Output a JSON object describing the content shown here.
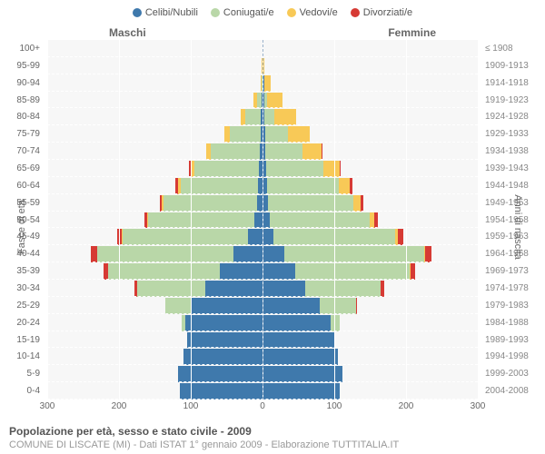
{
  "legend": [
    {
      "label": "Celibi/Nubili",
      "color": "#3f79ac"
    },
    {
      "label": "Coniugati/e",
      "color": "#b9d7a8"
    },
    {
      "label": "Vedovi/e",
      "color": "#f8c957"
    },
    {
      "label": "Divorziati/e",
      "color": "#d63a34"
    }
  ],
  "side_labels": {
    "male": "Maschi",
    "female": "Femmine"
  },
  "axis_titles": {
    "left": "Fasce di età",
    "right": "Anni di nascita"
  },
  "footer": {
    "title": "Popolazione per età, sesso e stato civile - 2009",
    "sub": "COMUNE DI LISCATE (MI) - Dati ISTAT 1° gennaio 2009 - Elaborazione TUTTITALIA.IT"
  },
  "x_max": 300,
  "x_ticks": [
    300,
    200,
    100,
    0,
    100,
    200,
    300
  ],
  "colors": {
    "single": "#3f79ac",
    "married": "#b9d7a8",
    "widowed": "#f8c957",
    "divorced": "#d63a34",
    "plot_bg": "#f7f7f7",
    "grid": "#ffffff"
  },
  "rows": [
    {
      "age": "100+",
      "birth": "≤ 1908",
      "m": {
        "s": 0,
        "c": 0,
        "w": 0,
        "d": 0
      },
      "f": {
        "s": 0,
        "c": 0,
        "w": 0,
        "d": 0
      }
    },
    {
      "age": "95-99",
      "birth": "1909-1913",
      "m": {
        "s": 0,
        "c": 0,
        "w": 1,
        "d": 0
      },
      "f": {
        "s": 0,
        "c": 0,
        "w": 3,
        "d": 0
      }
    },
    {
      "age": "90-94",
      "birth": "1914-1918",
      "m": {
        "s": 0,
        "c": 1,
        "w": 2,
        "d": 0
      },
      "f": {
        "s": 2,
        "c": 1,
        "w": 8,
        "d": 0
      }
    },
    {
      "age": "85-89",
      "birth": "1919-1923",
      "m": {
        "s": 1,
        "c": 7,
        "w": 5,
        "d": 0
      },
      "f": {
        "s": 2,
        "c": 4,
        "w": 22,
        "d": 0
      }
    },
    {
      "age": "80-84",
      "birth": "1924-1928",
      "m": {
        "s": 2,
        "c": 22,
        "w": 7,
        "d": 0
      },
      "f": {
        "s": 3,
        "c": 14,
        "w": 30,
        "d": 0
      }
    },
    {
      "age": "75-79",
      "birth": "1929-1933",
      "m": {
        "s": 3,
        "c": 42,
        "w": 8,
        "d": 0
      },
      "f": {
        "s": 4,
        "c": 32,
        "w": 30,
        "d": 0
      }
    },
    {
      "age": "70-74",
      "birth": "1934-1938",
      "m": {
        "s": 4,
        "c": 68,
        "w": 6,
        "d": 1
      },
      "f": {
        "s": 4,
        "c": 52,
        "w": 26,
        "d": 1
      }
    },
    {
      "age": "65-69",
      "birth": "1939-1943",
      "m": {
        "s": 5,
        "c": 90,
        "w": 5,
        "d": 2
      },
      "f": {
        "s": 5,
        "c": 80,
        "w": 22,
        "d": 2
      }
    },
    {
      "age": "60-64",
      "birth": "1944-1948",
      "m": {
        "s": 6,
        "c": 108,
        "w": 4,
        "d": 3
      },
      "f": {
        "s": 6,
        "c": 100,
        "w": 15,
        "d": 4
      }
    },
    {
      "age": "55-59",
      "birth": "1949-1953",
      "m": {
        "s": 8,
        "c": 130,
        "w": 2,
        "d": 3
      },
      "f": {
        "s": 7,
        "c": 120,
        "w": 10,
        "d": 4
      }
    },
    {
      "age": "50-54",
      "birth": "1954-1958",
      "m": {
        "s": 12,
        "c": 148,
        "w": 1,
        "d": 4
      },
      "f": {
        "s": 10,
        "c": 140,
        "w": 6,
        "d": 5
      }
    },
    {
      "age": "45-49",
      "birth": "1959-1963",
      "m": {
        "s": 20,
        "c": 175,
        "w": 1,
        "d": 6
      },
      "f": {
        "s": 15,
        "c": 170,
        "w": 4,
        "d": 7
      }
    },
    {
      "age": "40-44",
      "birth": "1964-1968",
      "m": {
        "s": 40,
        "c": 190,
        "w": 1,
        "d": 8
      },
      "f": {
        "s": 30,
        "c": 195,
        "w": 2,
        "d": 9
      }
    },
    {
      "age": "35-39",
      "birth": "1969-1973",
      "m": {
        "s": 60,
        "c": 155,
        "w": 0,
        "d": 6
      },
      "f": {
        "s": 45,
        "c": 160,
        "w": 1,
        "d": 7
      }
    },
    {
      "age": "30-34",
      "birth": "1974-1978",
      "m": {
        "s": 80,
        "c": 95,
        "w": 0,
        "d": 4
      },
      "f": {
        "s": 60,
        "c": 105,
        "w": 0,
        "d": 5
      }
    },
    {
      "age": "25-29",
      "birth": "1979-1983",
      "m": {
        "s": 100,
        "c": 35,
        "w": 0,
        "d": 1
      },
      "f": {
        "s": 80,
        "c": 50,
        "w": 0,
        "d": 2
      }
    },
    {
      "age": "20-24",
      "birth": "1984-1988",
      "m": {
        "s": 108,
        "c": 5,
        "w": 0,
        "d": 0
      },
      "f": {
        "s": 95,
        "c": 12,
        "w": 0,
        "d": 0
      }
    },
    {
      "age": "15-19",
      "birth": "1989-1993",
      "m": {
        "s": 105,
        "c": 0,
        "w": 0,
        "d": 0
      },
      "f": {
        "s": 100,
        "c": 0,
        "w": 0,
        "d": 0
      }
    },
    {
      "age": "10-14",
      "birth": "1994-1998",
      "m": {
        "s": 110,
        "c": 0,
        "w": 0,
        "d": 0
      },
      "f": {
        "s": 105,
        "c": 0,
        "w": 0,
        "d": 0
      }
    },
    {
      "age": "5-9",
      "birth": "1999-2003",
      "m": {
        "s": 118,
        "c": 0,
        "w": 0,
        "d": 0
      },
      "f": {
        "s": 112,
        "c": 0,
        "w": 0,
        "d": 0
      }
    },
    {
      "age": "0-4",
      "birth": "2004-2008",
      "m": {
        "s": 115,
        "c": 0,
        "w": 0,
        "d": 0
      },
      "f": {
        "s": 108,
        "c": 0,
        "w": 0,
        "d": 0
      }
    }
  ]
}
